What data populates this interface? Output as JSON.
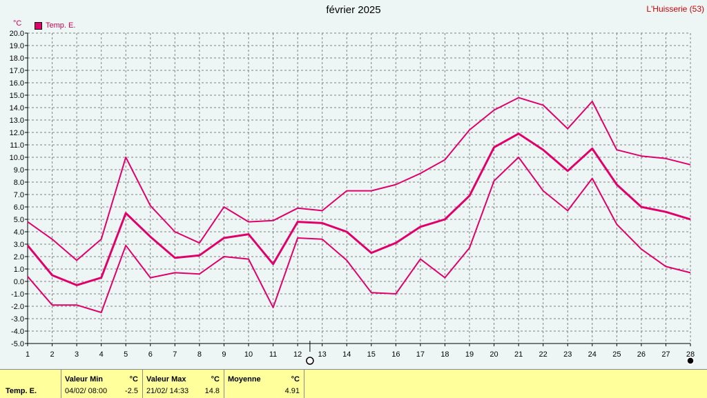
{
  "header": {
    "title": "février 2025",
    "station": "L'Huisserie (53)"
  },
  "legend": {
    "label": "Temp. E."
  },
  "chart_data": {
    "type": "line",
    "title": "février 2025",
    "ylabel": "°C",
    "ylim": [
      -5,
      20
    ],
    "yticks": [
      "20.0",
      "19.0",
      "18.0",
      "17.0",
      "16.0",
      "15.0",
      "14.0",
      "13.0",
      "12.0",
      "11.0",
      "10.0",
      "9.0",
      "8.0",
      "7.0",
      "6.0",
      "5.0",
      "4.0",
      "3.0",
      "2.0",
      "1.0",
      "0.0",
      "-1.0",
      "-2.0",
      "-3.0",
      "-4.0",
      "-5.0"
    ],
    "x": [
      1,
      2,
      3,
      4,
      5,
      6,
      7,
      8,
      9,
      10,
      11,
      12,
      13,
      14,
      15,
      16,
      17,
      18,
      19,
      20,
      21,
      22,
      23,
      24,
      25,
      26,
      27,
      28
    ],
    "grid": true,
    "color": "#e0006a",
    "series": [
      {
        "name": "max",
        "values": [
          4.8,
          3.4,
          1.7,
          3.4,
          10.0,
          6.1,
          4.0,
          3.1,
          6.0,
          4.8,
          4.9,
          5.9,
          5.7,
          7.3,
          7.3,
          7.8,
          8.7,
          9.8,
          12.2,
          13.8,
          14.8,
          14.2,
          12.3,
          14.5,
          10.6,
          10.1,
          9.9,
          9.4
        ]
      },
      {
        "name": "mean",
        "values": [
          2.9,
          0.5,
          -0.3,
          0.3,
          5.5,
          3.6,
          1.9,
          2.1,
          3.5,
          3.8,
          1.4,
          4.8,
          4.7,
          4.0,
          2.3,
          3.1,
          4.4,
          5.0,
          6.9,
          10.8,
          11.9,
          10.6,
          8.9,
          10.7,
          7.8,
          6.0,
          5.6,
          5.0
        ]
      },
      {
        "name": "min",
        "values": [
          0.4,
          -1.9,
          -1.9,
          -2.5,
          2.9,
          0.3,
          0.7,
          0.6,
          2.0,
          1.8,
          -2.1,
          3.5,
          3.4,
          1.7,
          -0.9,
          -1.0,
          1.8,
          0.3,
          2.7,
          8.1,
          10.0,
          7.3,
          5.7,
          8.3,
          4.6,
          2.6,
          1.2,
          0.7
        ]
      }
    ]
  },
  "footer": {
    "row_label": "Temp. E.",
    "min": {
      "header": "Valeur Min",
      "unit": "°C",
      "date": "04/02/  08:00",
      "value": "-2.5"
    },
    "max": {
      "header": "Valeur Max",
      "unit": "°C",
      "date": "21/02/  14:33",
      "value": "14.8"
    },
    "avg": {
      "header": "Moyenne",
      "unit": "°C",
      "value": "4.91"
    }
  }
}
